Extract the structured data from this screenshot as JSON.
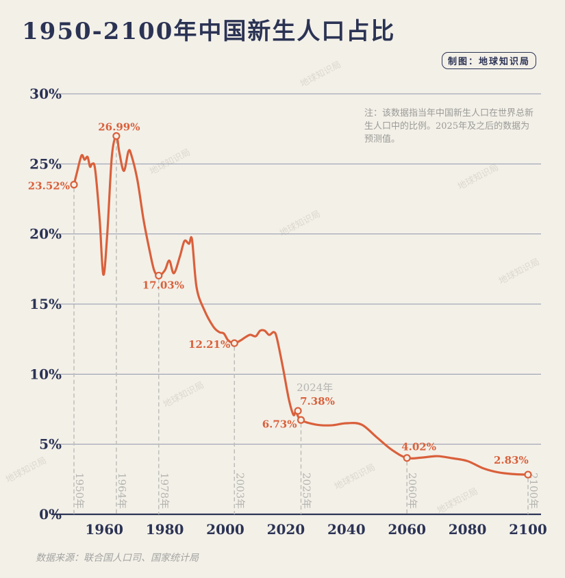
{
  "title": "1950-2100年中国新生人口占比",
  "credit": "制图：地球知识局",
  "note": "注：该数据指当年中国新生人口在世界总新生人口中的比例。2025年及之后的数据为预测值。",
  "source": "数据来源：联合国人口司、国家统计局",
  "watermark": "地球知识局",
  "colors": {
    "background": "#f3f0e8",
    "line": "#d9603b",
    "text": "#2b3354",
    "grid": "#8f96aa",
    "annotation_gray": "#b4b4b0"
  },
  "chart_data": {
    "type": "line",
    "title": "1950-2100年中国新生人口占比",
    "xlim": [
      1950,
      2100
    ],
    "ylim": [
      0,
      30
    ],
    "x_ticks": [
      "1960",
      "1980",
      "2000",
      "2020",
      "2040",
      "2060",
      "2080",
      "2100"
    ],
    "y_ticks": [
      "0%",
      "5%",
      "10%",
      "15%",
      "20%",
      "25%",
      "30%"
    ],
    "grid": "horizontal",
    "series": [
      {
        "points": [
          [
            1950,
            23.52
          ],
          [
            1951,
            24.4
          ],
          [
            1952.5,
            25.6
          ],
          [
            1953.5,
            25.3
          ],
          [
            1954.5,
            25.5
          ],
          [
            1955.3,
            24.8
          ],
          [
            1956,
            25.0
          ],
          [
            1957,
            24.6
          ],
          [
            1958.5,
            21.0
          ],
          [
            1959.7,
            17.1
          ],
          [
            1961,
            20.0
          ],
          [
            1962.5,
            25.5
          ],
          [
            1964,
            26.99
          ],
          [
            1965,
            25.8
          ],
          [
            1966.5,
            24.5
          ],
          [
            1968,
            25.9
          ],
          [
            1969,
            25.6
          ],
          [
            1971,
            23.8
          ],
          [
            1973,
            21.0
          ],
          [
            1975,
            18.8
          ],
          [
            1976.5,
            17.4
          ],
          [
            1978,
            17.03
          ],
          [
            1980,
            17.4
          ],
          [
            1981.5,
            18.1
          ],
          [
            1983,
            17.2
          ],
          [
            1985,
            18.4
          ],
          [
            1986.5,
            19.5
          ],
          [
            1988,
            19.3
          ],
          [
            1989,
            19.6
          ],
          [
            1990.5,
            16.2
          ],
          [
            1993,
            14.6
          ],
          [
            1996,
            13.4
          ],
          [
            1998,
            13.0
          ],
          [
            1999.5,
            12.9
          ],
          [
            2001,
            12.4
          ],
          [
            2003,
            12.21
          ],
          [
            2005,
            12.4
          ],
          [
            2008,
            12.8
          ],
          [
            2010,
            12.7
          ],
          [
            2011.5,
            13.1
          ],
          [
            2013,
            13.1
          ],
          [
            2014.5,
            12.8
          ],
          [
            2016,
            13.0
          ],
          [
            2017,
            12.6
          ],
          [
            2019,
            10.5
          ],
          [
            2021,
            8.2
          ],
          [
            2022.5,
            7.1
          ],
          [
            2023.3,
            7.3
          ],
          [
            2025,
            6.73
          ],
          [
            2030,
            6.4
          ],
          [
            2035,
            6.35
          ],
          [
            2040,
            6.5
          ],
          [
            2045,
            6.4
          ],
          [
            2050,
            5.5
          ],
          [
            2055,
            4.6
          ],
          [
            2060,
            4.02
          ],
          [
            2065,
            4.05
          ],
          [
            2070,
            4.15
          ],
          [
            2075,
            4.0
          ],
          [
            2080,
            3.8
          ],
          [
            2085,
            3.3
          ],
          [
            2090,
            3.0
          ],
          [
            2095,
            2.87
          ],
          [
            2100,
            2.83
          ]
        ]
      }
    ],
    "annotations": [
      {
        "year": 1950,
        "value": 23.52,
        "label": "23.52%",
        "year_label": "1950年"
      },
      {
        "year": 1964,
        "value": 26.99,
        "label": "26.99%",
        "year_label": "1964年"
      },
      {
        "year": 1978,
        "value": 17.03,
        "label": "17.03%",
        "year_label": "1978年"
      },
      {
        "year": 2003,
        "value": 12.21,
        "label": "12.21%",
        "year_label": "2003年"
      },
      {
        "year": 2024,
        "value": 7.38,
        "label": "7.38%",
        "year_label": "2024年"
      },
      {
        "year": 2025,
        "value": 6.73,
        "label": "6.73%",
        "year_label": "2025年"
      },
      {
        "year": 2060,
        "value": 4.02,
        "label": "4.02%",
        "year_label": "2060年"
      },
      {
        "year": 2100,
        "value": 2.83,
        "label": "2.83%",
        "year_label": "2100年"
      }
    ]
  }
}
